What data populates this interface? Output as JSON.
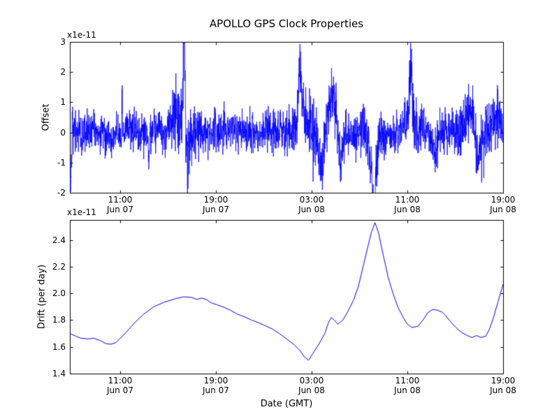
{
  "figure": {
    "title": "APOLLO GPS Clock Properties",
    "xlabel": "Date (GMT)",
    "background": "#ffffff",
    "axes_color": "#000000",
    "line_color": "#0000ff"
  },
  "chart_data": [
    {
      "type": "line",
      "name": "offset",
      "ylabel": "Offset",
      "scale_label": "x1e-11",
      "ylim": [
        -2,
        3
      ],
      "yticks": [
        {
          "pos": 3,
          "label": "3"
        },
        {
          "pos": 2,
          "label": "2"
        },
        {
          "pos": 1,
          "label": "1"
        },
        {
          "pos": 0,
          "label": "0"
        },
        {
          "pos": -1,
          "label": "-1"
        },
        {
          "pos": -2,
          "label": "-2"
        }
      ],
      "xlim": [
        0,
        36.2
      ],
      "xticks": [
        {
          "pos": 4.2,
          "time": "11:00",
          "date": "Jun 07"
        },
        {
          "pos": 12.2,
          "time": "19:00",
          "date": "Jun 07"
        },
        {
          "pos": 20.2,
          "time": "03:00",
          "date": "Jun 08"
        },
        {
          "pos": 28.2,
          "time": "11:00",
          "date": "Jun 08"
        },
        {
          "pos": 36.2,
          "time": "19:00",
          "date": "Jun 08"
        }
      ],
      "signal": {
        "kind": "gaussian-noise",
        "seed": 42,
        "n": 2400,
        "base_std": 0.34,
        "wander_step": 0.05,
        "wander_decay": 0.985,
        "events": [
          {
            "x": 0.06,
            "v": -2.0,
            "w": 0.08
          },
          {
            "x": 6.6,
            "v": -1.0,
            "w": 0.1
          },
          {
            "x": 9.0,
            "v": 0.6,
            "w": 0.5
          },
          {
            "x": 9.55,
            "v": 2.9,
            "w": 0.1
          },
          {
            "x": 9.8,
            "v": -1.0,
            "w": 0.15
          },
          {
            "x": 19.2,
            "v": 1.6,
            "w": 0.2
          },
          {
            "x": 19.6,
            "v": 0.8,
            "w": 0.5
          },
          {
            "x": 21.0,
            "v": -1.2,
            "w": 0.3
          },
          {
            "x": 21.9,
            "v": 1.1,
            "w": 0.4
          },
          {
            "x": 22.6,
            "v": -0.9,
            "w": 0.2
          },
          {
            "x": 24.6,
            "v": 0.5,
            "w": 0.4
          },
          {
            "x": 25.2,
            "v": -1.2,
            "w": 0.5
          },
          {
            "x": 25.45,
            "v": -1.6,
            "w": 0.15
          },
          {
            "x": 28.2,
            "v": 0.5,
            "w": 0.4
          },
          {
            "x": 28.5,
            "v": 1.9,
            "w": 0.12
          },
          {
            "x": 30.5,
            "v": -0.6,
            "w": 0.3
          },
          {
            "x": 33.4,
            "v": 0.6,
            "w": 0.5
          },
          {
            "x": 34.2,
            "v": -0.8,
            "w": 0.3
          },
          {
            "x": 35.6,
            "v": 0.7,
            "w": 0.4
          }
        ],
        "bursts": [
          {
            "x": 9.5,
            "w": 1.0,
            "a": 0.8
          },
          {
            "x": 19.8,
            "w": 1.2,
            "a": 0.5
          },
          {
            "x": 22.0,
            "w": 1.0,
            "a": 0.5
          },
          {
            "x": 25.4,
            "w": 0.8,
            "a": 0.6
          },
          {
            "x": 28.5,
            "w": 0.8,
            "a": 0.6
          },
          {
            "x": 33.8,
            "w": 1.5,
            "a": 0.4
          },
          {
            "x": 35.8,
            "w": 0.5,
            "a": 0.5
          }
        ]
      }
    },
    {
      "type": "line",
      "name": "drift",
      "ylabel": "Drift (per day)",
      "scale_label": "x1e-11",
      "ylim": [
        1.4,
        2.55
      ],
      "yticks": [
        {
          "pos": 2.4,
          "label": "2.4"
        },
        {
          "pos": 2.2,
          "label": "2.2"
        },
        {
          "pos": 2.0,
          "label": "2.0"
        },
        {
          "pos": 1.8,
          "label": "1.8"
        },
        {
          "pos": 1.6,
          "label": "1.6"
        },
        {
          "pos": 1.4,
          "label": "1.4"
        }
      ],
      "xlim": [
        0,
        36.2
      ],
      "xticks": [
        {
          "pos": 4.2,
          "time": "11:00",
          "date": "Jun 07"
        },
        {
          "pos": 12.2,
          "time": "19:00",
          "date": "Jun 07"
        },
        {
          "pos": 20.2,
          "time": "03:00",
          "date": "Jun 08"
        },
        {
          "pos": 28.2,
          "time": "11:00",
          "date": "Jun 08"
        },
        {
          "pos": 36.2,
          "time": "19:00",
          "date": "Jun 08"
        }
      ],
      "points": [
        [
          0,
          1.7
        ],
        [
          0.5,
          1.68
        ],
        [
          0.9,
          1.665
        ],
        [
          1.5,
          1.66
        ],
        [
          2.0,
          1.665
        ],
        [
          2.6,
          1.645
        ],
        [
          3.0,
          1.625
        ],
        [
          3.4,
          1.62
        ],
        [
          3.8,
          1.63
        ],
        [
          4.4,
          1.68
        ],
        [
          5.3,
          1.77
        ],
        [
          6.1,
          1.84
        ],
        [
          7.0,
          1.9
        ],
        [
          7.9,
          1.935
        ],
        [
          8.8,
          1.96
        ],
        [
          9.5,
          1.975
        ],
        [
          10.2,
          1.97
        ],
        [
          10.6,
          1.955
        ],
        [
          11.0,
          1.965
        ],
        [
          11.4,
          1.955
        ],
        [
          11.8,
          1.93
        ],
        [
          12.3,
          1.915
        ],
        [
          12.9,
          1.895
        ],
        [
          13.4,
          1.875
        ],
        [
          14.0,
          1.845
        ],
        [
          14.6,
          1.825
        ],
        [
          15.2,
          1.8
        ],
        [
          15.8,
          1.78
        ],
        [
          16.4,
          1.755
        ],
        [
          16.9,
          1.735
        ],
        [
          17.5,
          1.7
        ],
        [
          18.1,
          1.66
        ],
        [
          18.7,
          1.62
        ],
        [
          19.2,
          1.575
        ],
        [
          19.6,
          1.525
        ],
        [
          19.95,
          1.5
        ],
        [
          20.3,
          1.55
        ],
        [
          20.8,
          1.62
        ],
        [
          21.3,
          1.7
        ],
        [
          21.6,
          1.78
        ],
        [
          21.85,
          1.82
        ],
        [
          22.1,
          1.8
        ],
        [
          22.4,
          1.77
        ],
        [
          22.8,
          1.8
        ],
        [
          23.2,
          1.86
        ],
        [
          23.7,
          1.95
        ],
        [
          24.1,
          2.05
        ],
        [
          24.5,
          2.2
        ],
        [
          24.9,
          2.35
        ],
        [
          25.2,
          2.46
        ],
        [
          25.5,
          2.53
        ],
        [
          25.8,
          2.45
        ],
        [
          26.2,
          2.28
        ],
        [
          26.6,
          2.12
        ],
        [
          27.0,
          2.0
        ],
        [
          27.4,
          1.9
        ],
        [
          27.85,
          1.82
        ],
        [
          28.2,
          1.77
        ],
        [
          28.6,
          1.745
        ],
        [
          29.1,
          1.755
        ],
        [
          29.5,
          1.8
        ],
        [
          29.9,
          1.855
        ],
        [
          30.3,
          1.88
        ],
        [
          30.7,
          1.875
        ],
        [
          31.1,
          1.86
        ],
        [
          31.4,
          1.835
        ],
        [
          31.8,
          1.79
        ],
        [
          32.2,
          1.75
        ],
        [
          32.7,
          1.71
        ],
        [
          33.2,
          1.685
        ],
        [
          33.6,
          1.67
        ],
        [
          34.0,
          1.685
        ],
        [
          34.35,
          1.67
        ],
        [
          34.75,
          1.68
        ],
        [
          35.05,
          1.73
        ],
        [
          35.4,
          1.82
        ],
        [
          35.75,
          1.93
        ],
        [
          36.2,
          2.07
        ]
      ]
    }
  ]
}
